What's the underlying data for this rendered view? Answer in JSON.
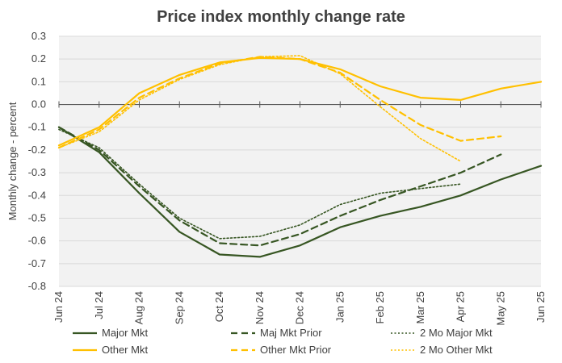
{
  "chart_data": {
    "type": "line",
    "title": "Price index monthly change rate",
    "xlabel": "",
    "ylabel": "Monthly change - percent",
    "ylim": [
      -0.8,
      0.3
    ],
    "yticks": [
      0.3,
      0.2,
      0.1,
      0.0,
      -0.1,
      -0.2,
      -0.3,
      -0.4,
      -0.5,
      -0.6,
      -0.7,
      -0.8
    ],
    "ytick_labels": [
      "0.3",
      "0.2",
      "0.1",
      "0.0",
      "-0.1",
      "-0.2",
      "-0.3",
      "-0.4",
      "-0.5",
      "-0.6",
      "-0.7",
      "-0.8"
    ],
    "categories": [
      "Jun 24",
      "Jul 24",
      "Aug 24",
      "Sep 24",
      "Oct 24",
      "Nov 24",
      "Dec 24",
      "Jan 25",
      "Feb 25",
      "Mar 25",
      "Apr 25",
      "May 25",
      "Jun 25"
    ],
    "legend_position": "bottom",
    "series": [
      {
        "name": "Major Mkt",
        "color": "#375623",
        "dash": "solid",
        "values": [
          -0.1,
          -0.21,
          -0.39,
          -0.56,
          -0.66,
          -0.67,
          -0.62,
          -0.54,
          -0.49,
          -0.45,
          -0.4,
          -0.33,
          -0.27
        ]
      },
      {
        "name": "Maj Mkt Prior",
        "color": "#375623",
        "dash": "dashed",
        "values": [
          -0.1,
          -0.2,
          -0.36,
          -0.51,
          -0.61,
          -0.62,
          -0.57,
          -0.49,
          -0.42,
          -0.36,
          -0.3,
          -0.22,
          null
        ]
      },
      {
        "name": "2 Mo Major Mkt",
        "color": "#375623",
        "dash": "dotted",
        "values": [
          -0.11,
          -0.19,
          -0.35,
          -0.5,
          -0.59,
          -0.58,
          -0.53,
          -0.44,
          -0.39,
          -0.37,
          -0.35,
          null,
          null
        ]
      },
      {
        "name": "Other Mkt",
        "color": "#FFC000",
        "dash": "solid",
        "values": [
          -0.18,
          -0.1,
          0.05,
          0.13,
          0.185,
          0.205,
          0.2,
          0.155,
          0.08,
          0.03,
          0.02,
          0.07,
          0.1
        ]
      },
      {
        "name": "Other Mkt Prior",
        "color": "#FFC000",
        "dash": "dashed",
        "values": [
          -0.19,
          -0.11,
          0.03,
          0.115,
          0.18,
          0.21,
          0.2,
          0.14,
          0.02,
          -0.09,
          -0.16,
          -0.14,
          null
        ]
      },
      {
        "name": "2 Mo Other Mkt",
        "color": "#FFC000",
        "dash": "dotted",
        "values": [
          -0.19,
          -0.12,
          0.02,
          0.11,
          0.175,
          0.21,
          0.215,
          0.135,
          -0.01,
          -0.15,
          -0.25,
          null,
          null
        ]
      }
    ]
  }
}
